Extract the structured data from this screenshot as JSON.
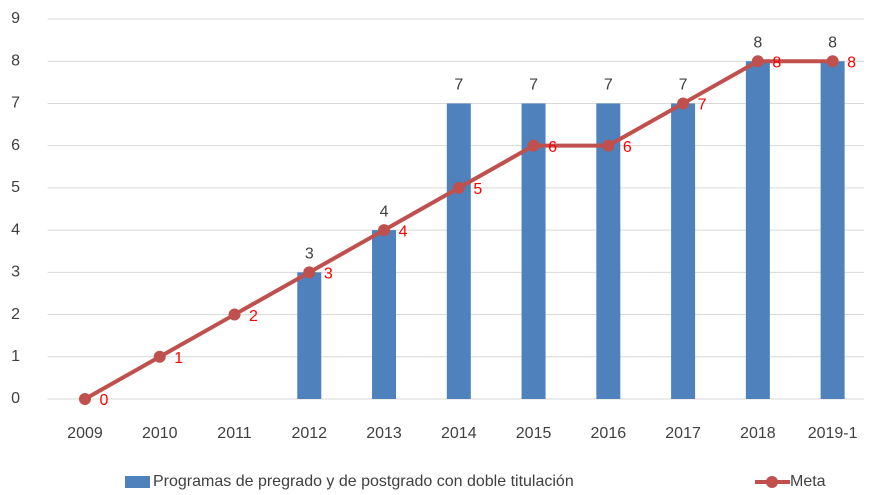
{
  "chart_data": {
    "type": "bar",
    "categories": [
      "2009",
      "2010",
      "2011",
      "2012",
      "2013",
      "2014",
      "2015",
      "2016",
      "2017",
      "2018",
      "2019-1"
    ],
    "series": [
      {
        "name": "Programas de pregrado y de postgrado con doble titulación",
        "type": "bar",
        "color": "#4f81bd",
        "values": [
          null,
          null,
          null,
          3,
          4,
          7,
          7,
          7,
          7,
          8,
          8
        ]
      },
      {
        "name": "Meta",
        "type": "line",
        "color": "#c0504d",
        "label_color": "#ff0000",
        "values": [
          0,
          1,
          2,
          3,
          4,
          5,
          6,
          6,
          7,
          8,
          8
        ]
      }
    ],
    "ylim": [
      0,
      9
    ],
    "yticks": [
      0,
      1,
      2,
      3,
      4,
      5,
      6,
      7,
      8,
      9
    ],
    "grid": true,
    "legend": "bottom"
  }
}
